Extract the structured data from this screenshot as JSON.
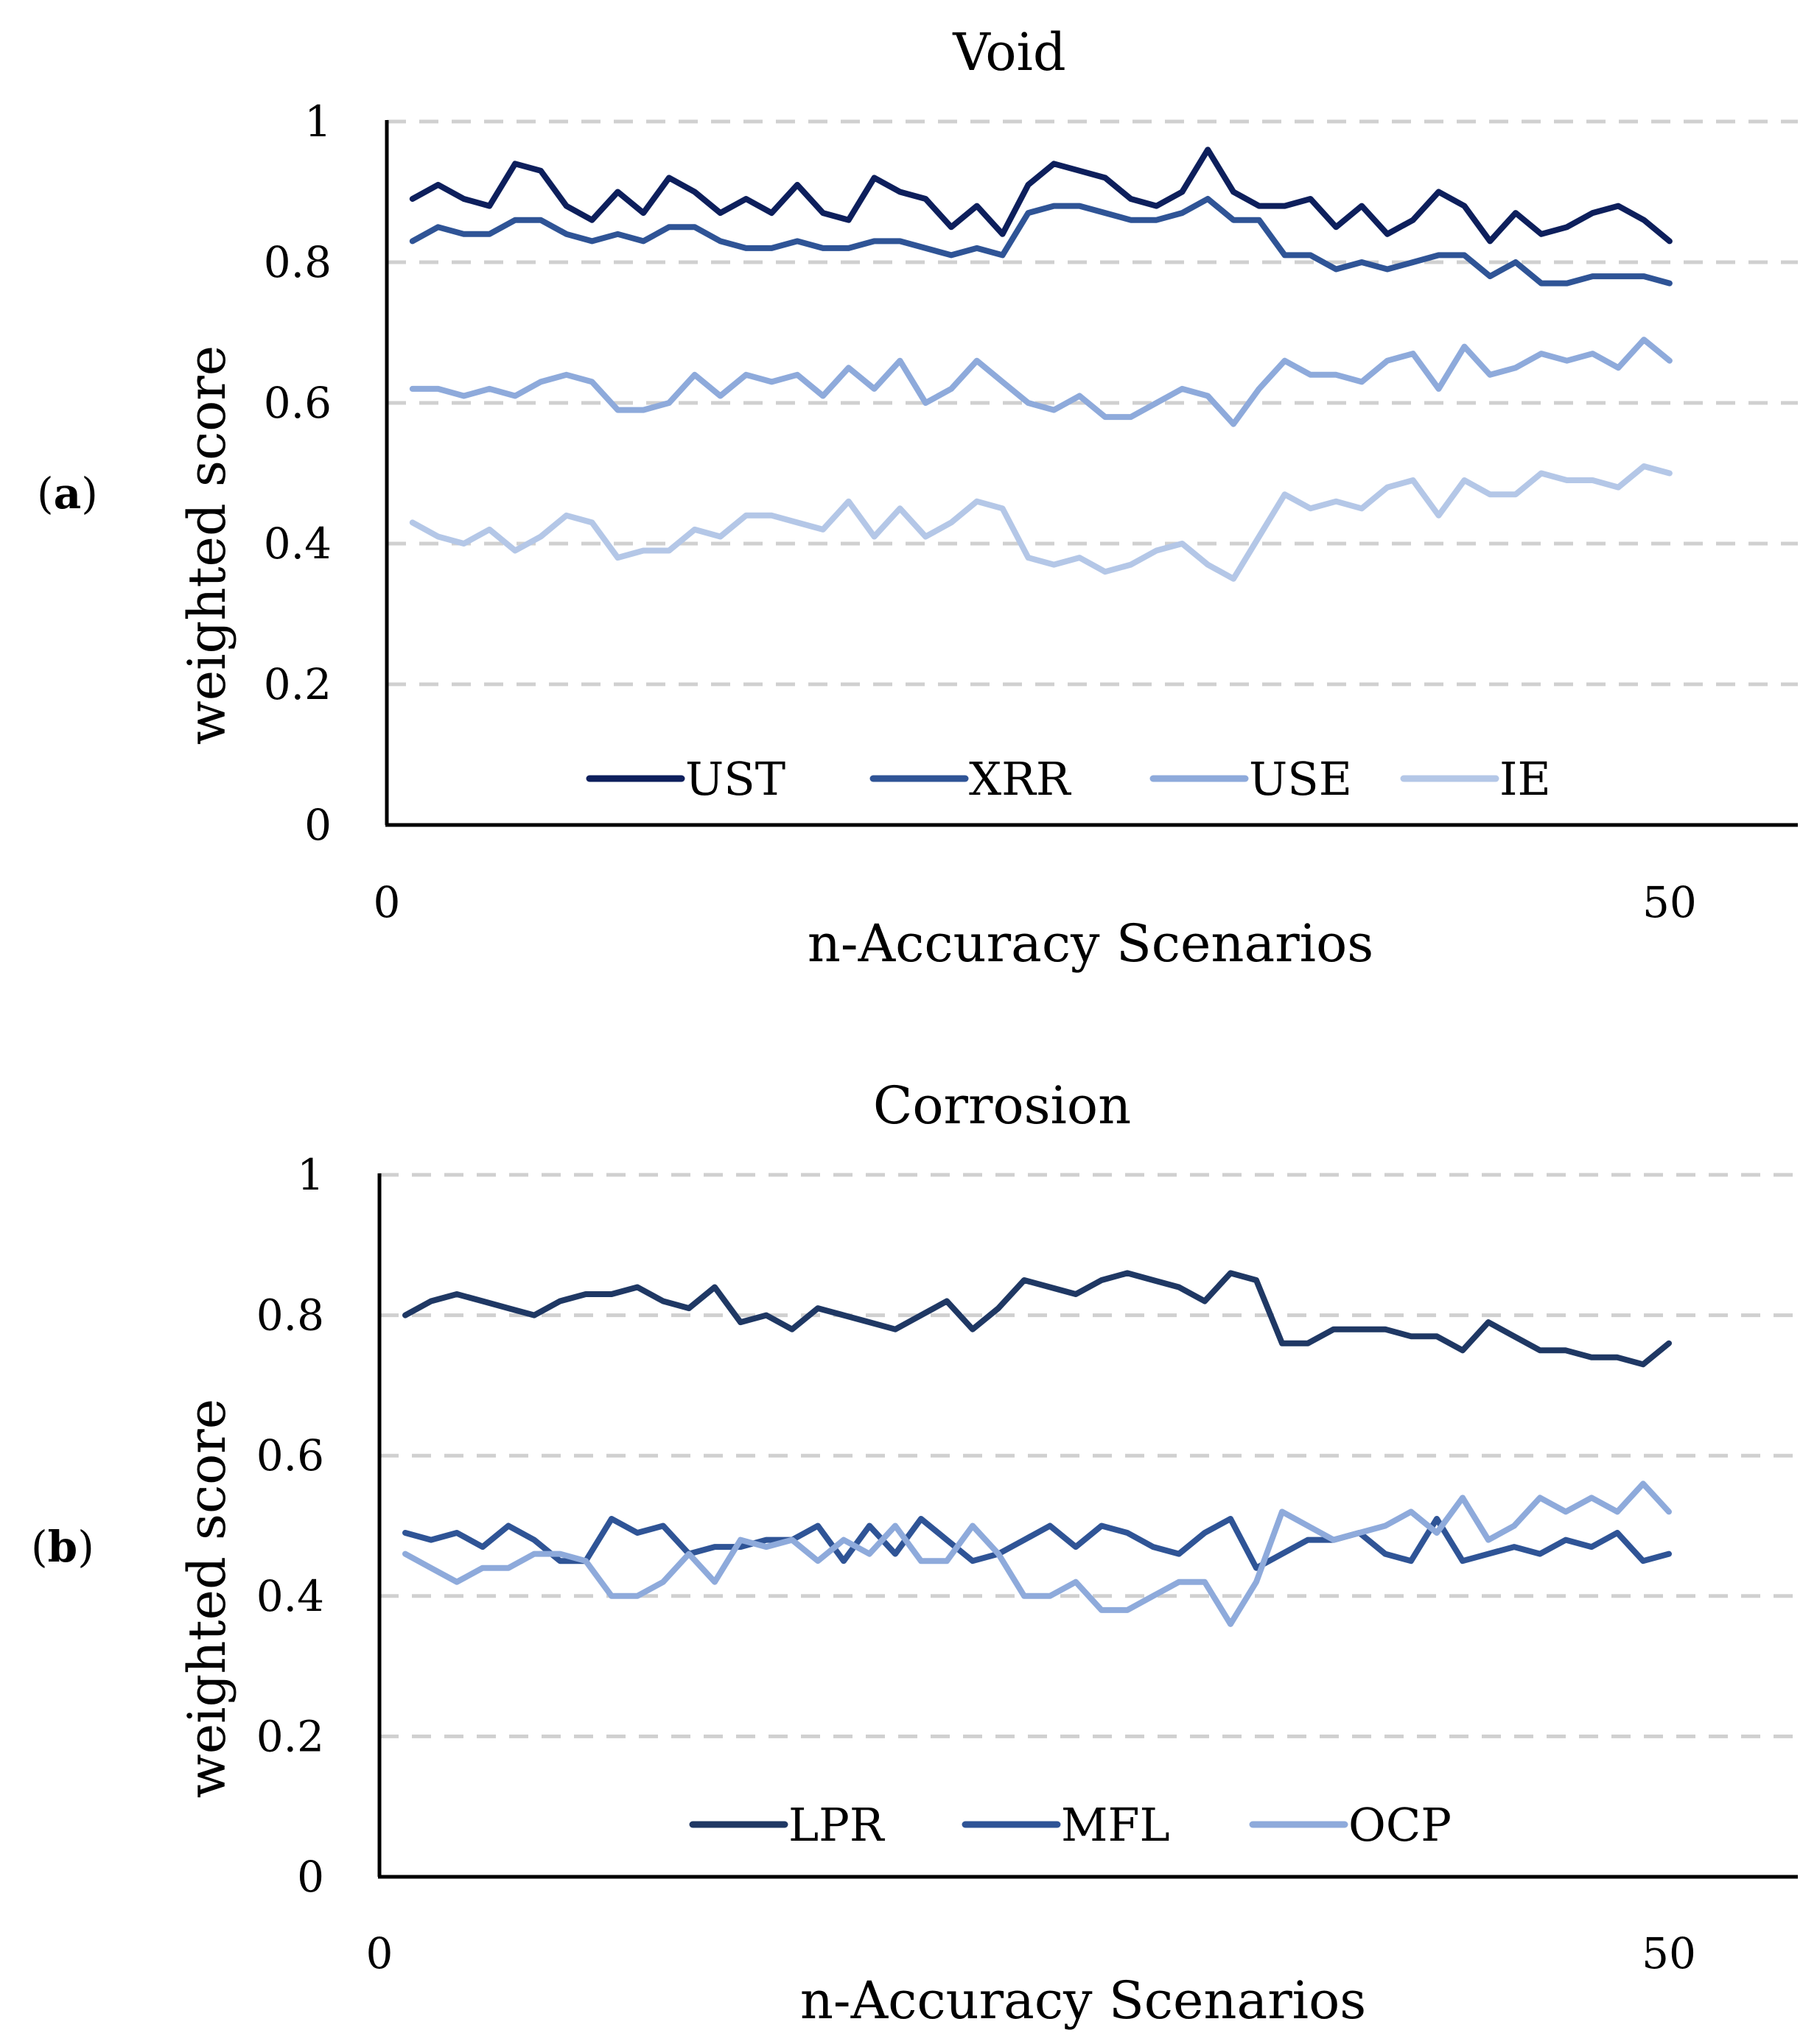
{
  "chart_data": [
    {
      "type": "line",
      "panel_label_open": "(",
      "panel_label_letter": "a",
      "panel_label_close": ")",
      "title": "Void",
      "xlabel": "n-Accuracy Scenarios",
      "ylabel": "weighted score",
      "xlim": [
        0,
        55
      ],
      "ylim": [
        0,
        1
      ],
      "xticks": [
        "0",
        "50"
      ],
      "yticks": [
        "0",
        "0.2",
        "0.4",
        "0.6",
        "0.8",
        "1"
      ],
      "grid": "dashed horizontal",
      "legend_position": "bottom-center",
      "x": [
        1,
        2,
        3,
        4,
        5,
        6,
        7,
        8,
        9,
        10,
        11,
        12,
        13,
        14,
        15,
        16,
        17,
        18,
        19,
        20,
        21,
        22,
        23,
        24,
        25,
        26,
        27,
        28,
        29,
        30,
        31,
        32,
        33,
        34,
        35,
        36,
        37,
        38,
        39,
        40,
        41,
        42,
        43,
        44,
        45,
        46,
        47,
        48,
        49,
        50
      ],
      "series": [
        {
          "name": "UST",
          "color": "#0d1f5c",
          "values": [
            0.89,
            0.91,
            0.89,
            0.88,
            0.94,
            0.93,
            0.88,
            0.86,
            0.9,
            0.87,
            0.92,
            0.9,
            0.87,
            0.89,
            0.87,
            0.91,
            0.87,
            0.86,
            0.92,
            0.9,
            0.89,
            0.85,
            0.88,
            0.84,
            0.91,
            0.94,
            0.93,
            0.92,
            0.89,
            0.88,
            0.9,
            0.96,
            0.9,
            0.88,
            0.88,
            0.89,
            0.85,
            0.88,
            0.84,
            0.86,
            0.9,
            0.88,
            0.83,
            0.87,
            0.84,
            0.85,
            0.87,
            0.88,
            0.86,
            0.83
          ]
        },
        {
          "name": "XRR",
          "color": "#2f5496",
          "values": [
            0.83,
            0.85,
            0.84,
            0.84,
            0.86,
            0.86,
            0.84,
            0.83,
            0.84,
            0.83,
            0.85,
            0.85,
            0.83,
            0.82,
            0.82,
            0.83,
            0.82,
            0.82,
            0.83,
            0.83,
            0.82,
            0.81,
            0.82,
            0.81,
            0.87,
            0.88,
            0.88,
            0.87,
            0.86,
            0.86,
            0.87,
            0.89,
            0.86,
            0.86,
            0.81,
            0.81,
            0.79,
            0.8,
            0.79,
            0.8,
            0.81,
            0.81,
            0.78,
            0.8,
            0.77,
            0.77,
            0.78,
            0.78,
            0.78,
            0.77
          ]
        },
        {
          "name": "USE",
          "color": "#8eaadb",
          "values": [
            0.62,
            0.62,
            0.61,
            0.62,
            0.61,
            0.63,
            0.64,
            0.63,
            0.59,
            0.59,
            0.6,
            0.64,
            0.61,
            0.64,
            0.63,
            0.64,
            0.61,
            0.65,
            0.62,
            0.66,
            0.6,
            0.62,
            0.66,
            0.63,
            0.6,
            0.59,
            0.61,
            0.58,
            0.58,
            0.6,
            0.62,
            0.61,
            0.57,
            0.62,
            0.66,
            0.64,
            0.64,
            0.63,
            0.66,
            0.67,
            0.62,
            0.68,
            0.64,
            0.65,
            0.67,
            0.66,
            0.67,
            0.65,
            0.69,
            0.66
          ]
        },
        {
          "name": "IE",
          "color": "#b4c7e7",
          "values": [
            0.43,
            0.41,
            0.4,
            0.42,
            0.39,
            0.41,
            0.44,
            0.43,
            0.38,
            0.39,
            0.39,
            0.42,
            0.41,
            0.44,
            0.44,
            0.43,
            0.42,
            0.46,
            0.41,
            0.45,
            0.41,
            0.43,
            0.46,
            0.45,
            0.38,
            0.37,
            0.38,
            0.36,
            0.37,
            0.39,
            0.4,
            0.37,
            0.35,
            0.41,
            0.47,
            0.45,
            0.46,
            0.45,
            0.48,
            0.49,
            0.44,
            0.49,
            0.47,
            0.47,
            0.5,
            0.49,
            0.49,
            0.48,
            0.51,
            0.5
          ]
        }
      ]
    },
    {
      "type": "line",
      "panel_label_open": "(",
      "panel_label_letter": "b",
      "panel_label_close": ")",
      "title": "Corrosion",
      "xlabel": "n-Accuracy Scenarios",
      "ylabel": "weighted score",
      "xlim": [
        0,
        55
      ],
      "ylim": [
        0,
        1
      ],
      "xticks": [
        "0",
        "50"
      ],
      "yticks": [
        "0",
        "0.2",
        "0.4",
        "0.6",
        "0.8",
        "1"
      ],
      "grid": "dashed horizontal",
      "legend_position": "bottom-center",
      "x": [
        1,
        2,
        3,
        4,
        5,
        6,
        7,
        8,
        9,
        10,
        11,
        12,
        13,
        14,
        15,
        16,
        17,
        18,
        19,
        20,
        21,
        22,
        23,
        24,
        25,
        26,
        27,
        28,
        29,
        30,
        31,
        32,
        33,
        34,
        35,
        36,
        37,
        38,
        39,
        40,
        41,
        42,
        43,
        44,
        45,
        46,
        47,
        48,
        49,
        50
      ],
      "series": [
        {
          "name": "LPR",
          "color": "#1f3864",
          "values": [
            0.8,
            0.82,
            0.83,
            0.82,
            0.81,
            0.8,
            0.82,
            0.83,
            0.83,
            0.84,
            0.82,
            0.81,
            0.84,
            0.79,
            0.8,
            0.78,
            0.81,
            0.8,
            0.79,
            0.78,
            0.8,
            0.82,
            0.78,
            0.81,
            0.85,
            0.84,
            0.83,
            0.85,
            0.86,
            0.85,
            0.84,
            0.82,
            0.86,
            0.85,
            0.76,
            0.76,
            0.78,
            0.78,
            0.78,
            0.77,
            0.77,
            0.75,
            0.79,
            0.77,
            0.75,
            0.75,
            0.74,
            0.74,
            0.73,
            0.76
          ]
        },
        {
          "name": "MFL",
          "color": "#2f5496",
          "values": [
            0.49,
            0.48,
            0.49,
            0.47,
            0.5,
            0.48,
            0.45,
            0.45,
            0.51,
            0.49,
            0.5,
            0.46,
            0.47,
            0.47,
            0.48,
            0.48,
            0.5,
            0.45,
            0.5,
            0.46,
            0.51,
            0.48,
            0.45,
            0.46,
            0.48,
            0.5,
            0.47,
            0.5,
            0.49,
            0.47,
            0.46,
            0.49,
            0.51,
            0.44,
            0.46,
            0.48,
            0.48,
            0.49,
            0.46,
            0.45,
            0.51,
            0.45,
            0.46,
            0.47,
            0.46,
            0.48,
            0.47,
            0.49,
            0.45,
            0.46
          ]
        },
        {
          "name": "OCP",
          "color": "#8eaadb",
          "values": [
            0.46,
            0.44,
            0.42,
            0.44,
            0.44,
            0.46,
            0.46,
            0.45,
            0.4,
            0.4,
            0.42,
            0.46,
            0.42,
            0.48,
            0.47,
            0.48,
            0.45,
            0.48,
            0.46,
            0.5,
            0.45,
            0.45,
            0.5,
            0.46,
            0.4,
            0.4,
            0.42,
            0.38,
            0.38,
            0.4,
            0.42,
            0.42,
            0.36,
            0.42,
            0.52,
            0.5,
            0.48,
            0.49,
            0.5,
            0.52,
            0.49,
            0.54,
            0.48,
            0.5,
            0.54,
            0.52,
            0.54,
            0.52,
            0.56,
            0.52
          ]
        }
      ]
    }
  ]
}
